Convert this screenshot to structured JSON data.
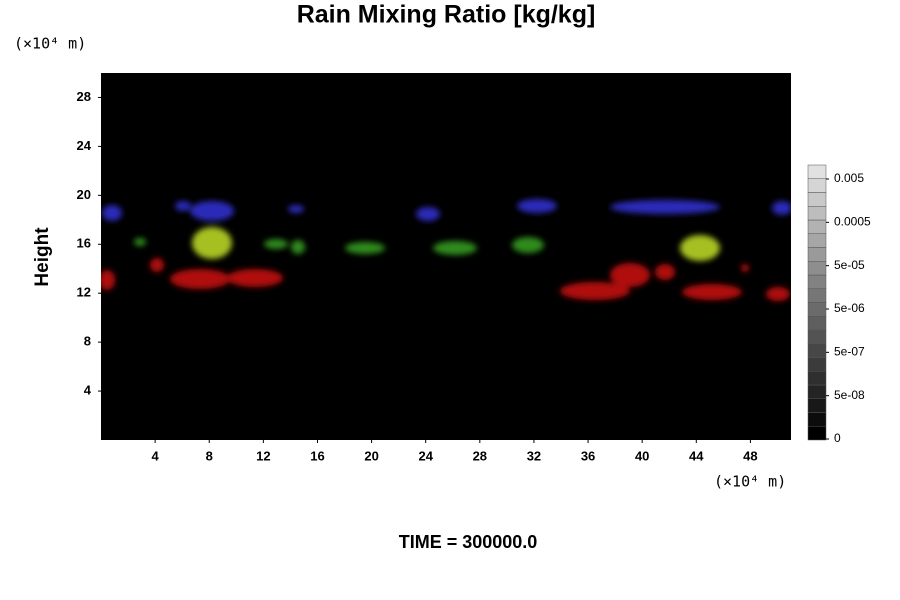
{
  "chart_data": {
    "type": "heatmap",
    "title": "Rain Mixing Ratio [kg/kg]",
    "x_unit": "(×10⁴ m)",
    "y_unit": "(×10⁴ m)",
    "y_label": "Height",
    "annotation": "TIME = 300000.0",
    "xlim": [
      0,
      51
    ],
    "xticks": [
      4,
      8,
      12,
      16,
      20,
      24,
      28,
      32,
      36,
      40,
      44,
      48
    ],
    "ylim": [
      0,
      30
    ],
    "yticks": [
      4,
      8,
      12,
      16,
      20,
      24,
      28
    ],
    "colorbar_ticks": [
      0,
      {
        "value": 5e-08,
        "label": "5e-08"
      },
      {
        "value": 5e-07,
        "label": "5e-07"
      },
      {
        "value": 5e-06,
        "label": "5e-06"
      },
      {
        "value": 5e-05,
        "label": "5e-05"
      },
      0.0005,
      0.005
    ]
  }
}
